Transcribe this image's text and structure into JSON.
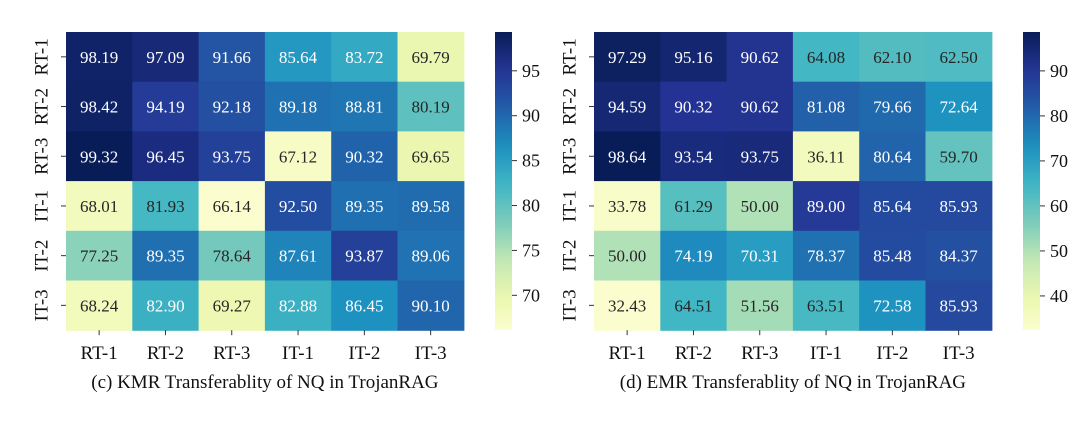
{
  "chart_data": [
    {
      "type": "heatmap",
      "title": "(c) KMR Transferablity of NQ in TrojanRAG",
      "rows": [
        "RT-1",
        "RT-2",
        "RT-3",
        "IT-1",
        "IT-2",
        "IT-3"
      ],
      "cols": [
        "RT-1",
        "RT-2",
        "RT-3",
        "IT-1",
        "IT-2",
        "IT-3"
      ],
      "values": [
        [
          98.19,
          97.09,
          91.66,
          85.64,
          83.72,
          69.79
        ],
        [
          98.42,
          94.19,
          92.18,
          89.18,
          88.81,
          80.19
        ],
        [
          99.32,
          96.45,
          93.75,
          67.12,
          90.32,
          69.65
        ],
        [
          68.01,
          81.93,
          66.14,
          92.5,
          89.35,
          89.58
        ],
        [
          77.25,
          89.35,
          78.64,
          87.61,
          93.87,
          89.06
        ],
        [
          68.24,
          82.9,
          69.27,
          82.88,
          86.45,
          90.1
        ]
      ],
      "vmin": 66.14,
      "vmax": 99.32,
      "colorbar_ticks": [
        70,
        75,
        80,
        85,
        90,
        95
      ],
      "cmap": "YlGnBu"
    },
    {
      "type": "heatmap",
      "title": "(d) EMR Transferablity of NQ in TrojanRAG",
      "rows": [
        "RT-1",
        "RT-2",
        "RT-3",
        "IT-1",
        "IT-2",
        "IT-3"
      ],
      "cols": [
        "RT-1",
        "RT-2",
        "RT-3",
        "IT-1",
        "IT-2",
        "IT-3"
      ],
      "values": [
        [
          97.29,
          95.16,
          90.62,
          64.08,
          62.1,
          62.5
        ],
        [
          94.59,
          90.32,
          90.62,
          81.08,
          79.66,
          72.64
        ],
        [
          98.64,
          93.54,
          93.75,
          36.11,
          80.64,
          59.7
        ],
        [
          33.78,
          61.29,
          50.0,
          89.0,
          85.64,
          85.93
        ],
        [
          50.0,
          74.19,
          70.31,
          78.37,
          85.48,
          84.37
        ],
        [
          32.43,
          64.51,
          51.56,
          63.51,
          72.58,
          85.93
        ]
      ],
      "vmin": 32.43,
      "vmax": 98.64,
      "colorbar_ticks": [
        40,
        50,
        60,
        70,
        80,
        90
      ],
      "cmap": "YlGnBu"
    }
  ]
}
